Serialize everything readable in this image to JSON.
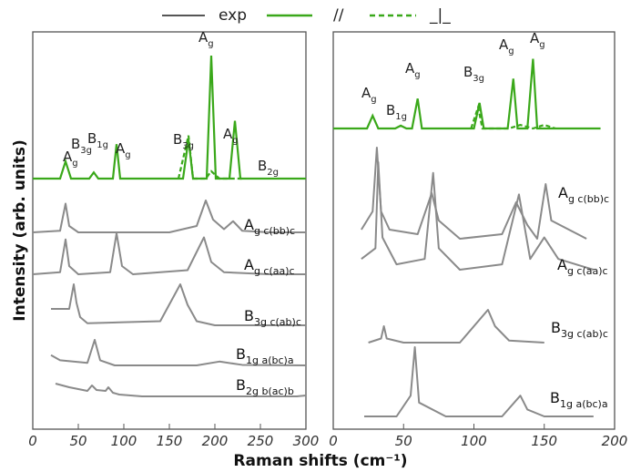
{
  "chart_data": {
    "type": "line",
    "xlabel": "Raman shifts (cm⁻¹)",
    "ylabel": "Intensity (arb. units)",
    "legend": [
      {
        "label": "exp",
        "color": "#555555",
        "style": "solid"
      },
      {
        "label": "//",
        "color": "#3aa81a",
        "style": "solid"
      },
      {
        "label": "_|_",
        "color": "#3aa81a",
        "style": "dashed"
      }
    ],
    "colors": {
      "experiment": "#8a8a8a",
      "calc": "#3aa81a",
      "frame": "#555555"
    },
    "panels": [
      {
        "id": "left",
        "xlim": [
          0,
          300
        ],
        "xticks": [
          "0",
          "50",
          "100",
          "150",
          "200",
          "250",
          "300"
        ],
        "calc_peak_labels": [
          {
            "main": "A",
            "sub": "g",
            "x": 36
          },
          {
            "main": "B",
            "sub": "3g",
            "x": 50
          },
          {
            "main": "B",
            "sub": "1g",
            "x": 67
          },
          {
            "main": "A",
            "sub": "g",
            "x": 93
          },
          {
            "main": "B",
            "sub": "3g",
            "x": 171
          },
          {
            "main": "A",
            "sub": "g",
            "x": 196
          },
          {
            "main": "A",
            "sub": "g",
            "x": 222
          },
          {
            "main": "B",
            "sub": "2g",
            "x": 262
          }
        ],
        "calc_parallel": [
          [
            0,
            0
          ],
          [
            30,
            0
          ],
          [
            36,
            0.14
          ],
          [
            42,
            0
          ],
          [
            62,
            0
          ],
          [
            67,
            0.05
          ],
          [
            72,
            0
          ],
          [
            88,
            0
          ],
          [
            92,
            0.28
          ],
          [
            96,
            0
          ],
          [
            165,
            0
          ],
          [
            171,
            0.32
          ],
          [
            176,
            0
          ],
          [
            191,
            0
          ],
          [
            196,
            1.0
          ],
          [
            201,
            0
          ],
          [
            216,
            0
          ],
          [
            222,
            0.47
          ],
          [
            228,
            0
          ],
          [
            260,
            0
          ],
          [
            300,
            0
          ]
        ],
        "calc_perp": [
          [
            160,
            0
          ],
          [
            171,
            0.35
          ],
          [
            176,
            0
          ],
          [
            190,
            0
          ],
          [
            196,
            0.06
          ],
          [
            205,
            0
          ],
          [
            230,
            0
          ]
        ],
        "experimental": [
          {
            "label_main": "A",
            "label_sub": "g c(bb)c",
            "points": [
              [
                0,
                0
              ],
              [
                30,
                0.05
              ],
              [
                36,
                0.9
              ],
              [
                40,
                0.2
              ],
              [
                50,
                0
              ],
              [
                150,
                0
              ],
              [
                180,
                0.2
              ],
              [
                190,
                1.0
              ],
              [
                198,
                0.4
              ],
              [
                210,
                0.1
              ],
              [
                220,
                0.35
              ],
              [
                230,
                0.05
              ],
              [
                260,
                0
              ],
              [
                300,
                0
              ]
            ]
          },
          {
            "label_main": "A",
            "label_sub": "g c(aa)c",
            "points": [
              [
                0,
                0
              ],
              [
                30,
                0.05
              ],
              [
                36,
                0.85
              ],
              [
                40,
                0.2
              ],
              [
                50,
                0
              ],
              [
                85,
                0.05
              ],
              [
                92,
                1.0
              ],
              [
                98,
                0.2
              ],
              [
                110,
                0
              ],
              [
                170,
                0.1
              ],
              [
                188,
                0.9
              ],
              [
                196,
                0.3
              ],
              [
                210,
                0.05
              ],
              [
                260,
                0
              ],
              [
                300,
                0
              ]
            ]
          },
          {
            "label_main": "B",
            "label_sub": "3g c(ab)c",
            "points": [
              [
                20,
                0.4
              ],
              [
                40,
                0.4
              ],
              [
                45,
                1.0
              ],
              [
                48,
                0.55
              ],
              [
                52,
                0.2
              ],
              [
                60,
                0.05
              ],
              [
                140,
                0.1
              ],
              [
                162,
                1.0
              ],
              [
                170,
                0.5
              ],
              [
                180,
                0.1
              ],
              [
                200,
                0
              ],
              [
                300,
                0
              ]
            ]
          },
          {
            "label_main": "B",
            "label_sub": "1g a(bc)a",
            "points": [
              [
                20,
                0.4
              ],
              [
                30,
                0.2
              ],
              [
                60,
                0.1
              ],
              [
                68,
                1.0
              ],
              [
                74,
                0.2
              ],
              [
                90,
                0
              ],
              [
                180,
                0
              ],
              [
                205,
                0.15
              ],
              [
                230,
                0.02
              ],
              [
                300,
                0
              ]
            ]
          },
          {
            "label_main": "B",
            "label_sub": "2g b(ac)b",
            "points": [
              [
                25,
                0.7
              ],
              [
                40,
                0.5
              ],
              [
                60,
                0.3
              ],
              [
                65,
                0.6
              ],
              [
                70,
                0.35
              ],
              [
                80,
                0.3
              ],
              [
                83,
                0.5
              ],
              [
                88,
                0.2
              ],
              [
                95,
                0.1
              ],
              [
                120,
                0
              ],
              [
                290,
                0
              ],
              [
                300,
                0.05
              ]
            ]
          }
        ]
      },
      {
        "id": "right",
        "xlim": [
          0,
          200
        ],
        "xticks": [
          "0",
          "50",
          "100",
          "150",
          "200"
        ],
        "calc_peak_labels": [
          {
            "main": "A",
            "sub": "g",
            "x": 28
          },
          {
            "main": "B",
            "sub": "1g",
            "x": 48
          },
          {
            "main": "A",
            "sub": "g",
            "x": 60
          },
          {
            "main": "B",
            "sub": "3g",
            "x": 104
          },
          {
            "main": "A",
            "sub": "g",
            "x": 128
          },
          {
            "main": "A",
            "sub": "g",
            "x": 142
          }
        ],
        "calc_parallel": [
          [
            0,
            0
          ],
          [
            24,
            0
          ],
          [
            28,
            0.18
          ],
          [
            32,
            0
          ],
          [
            44,
            0
          ],
          [
            48,
            0.04
          ],
          [
            52,
            0
          ],
          [
            56,
            0
          ],
          [
            60,
            0.42
          ],
          [
            63,
            0
          ],
          [
            100,
            0
          ],
          [
            104,
            0.36
          ],
          [
            107,
            0
          ],
          [
            124,
            0
          ],
          [
            128,
            0.7
          ],
          [
            131,
            0
          ],
          [
            138,
            0
          ],
          [
            142,
            0.98
          ],
          [
            145,
            0
          ],
          [
            190,
            0
          ]
        ],
        "calc_perp": [
          [
            98,
            0
          ],
          [
            103,
            0.3
          ],
          [
            106,
            0
          ],
          [
            125,
            0
          ],
          [
            133,
            0.05
          ],
          [
            142,
            0
          ],
          [
            150,
            0.05
          ],
          [
            158,
            0
          ]
        ],
        "experimental": [
          {
            "label_main": "A",
            "label_sub": "g c(bb)c",
            "points": [
              [
                20,
                0.1
              ],
              [
                28,
                0.3
              ],
              [
                31,
                1.0
              ],
              [
                34,
                0.3
              ],
              [
                40,
                0.1
              ],
              [
                60,
                0.05
              ],
              [
                70,
                0.5
              ],
              [
                75,
                0.2
              ],
              [
                90,
                0
              ],
              [
                120,
                0.05
              ],
              [
                130,
                0.4
              ],
              [
                138,
                0.15
              ],
              [
                145,
                0
              ],
              [
                151,
                0.6
              ],
              [
                155,
                0.2
              ],
              [
                180,
                0
              ]
            ]
          },
          {
            "label_main": "A",
            "label_sub": "g c(aa)c",
            "points": [
              [
                20,
                0.1
              ],
              [
                30,
                0.2
              ],
              [
                32,
                1.0
              ],
              [
                35,
                0.3
              ],
              [
                45,
                0.05
              ],
              [
                65,
                0.1
              ],
              [
                71,
                0.9
              ],
              [
                75,
                0.2
              ],
              [
                90,
                0
              ],
              [
                120,
                0.05
              ],
              [
                132,
                0.7
              ],
              [
                140,
                0.1
              ],
              [
                150,
                0.3
              ],
              [
                160,
                0.1
              ],
              [
                185,
                0
              ]
            ]
          },
          {
            "label_main": "B",
            "label_sub": "3g c(ab)c",
            "points": [
              [
                25,
                0
              ],
              [
                34,
                0.1
              ],
              [
                36,
                0.4
              ],
              [
                38,
                0.1
              ],
              [
                50,
                0
              ],
              [
                90,
                0
              ],
              [
                110,
                0.8
              ],
              [
                115,
                0.4
              ],
              [
                125,
                0.05
              ],
              [
                150,
                0
              ]
            ]
          },
          {
            "label_main": "B",
            "label_sub": "1g a(bc)a",
            "points": [
              [
                22,
                0
              ],
              [
                45,
                0
              ],
              [
                55,
                0.3
              ],
              [
                58,
                1.0
              ],
              [
                61,
                0.2
              ],
              [
                80,
                0
              ],
              [
                120,
                0
              ],
              [
                133,
                0.3
              ],
              [
                138,
                0.1
              ],
              [
                150,
                0
              ],
              [
                185,
                0
              ]
            ]
          }
        ]
      }
    ]
  }
}
